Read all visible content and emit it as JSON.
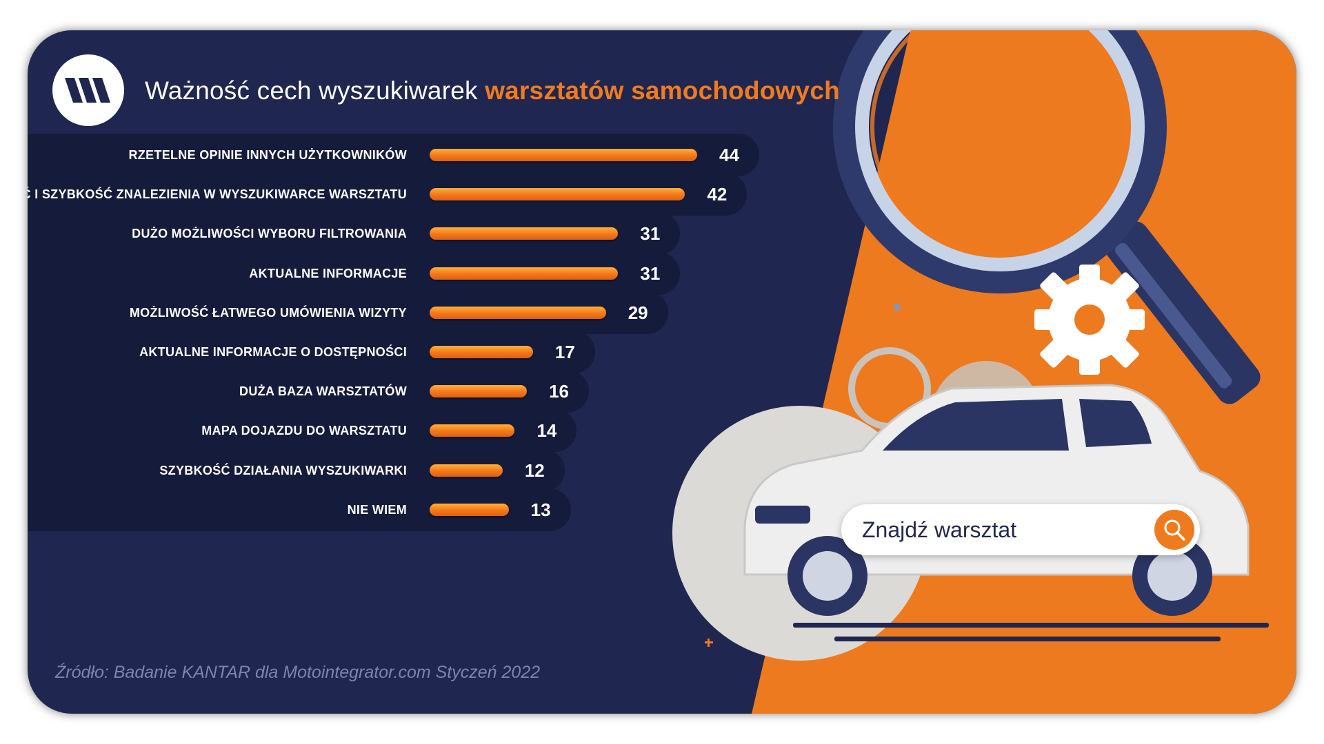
{
  "title": {
    "part1": "Ważność cech wyszukiwarek",
    "part2": "warsztatów samochodowych"
  },
  "logo": {
    "icon": "brand-logo-icon"
  },
  "search": {
    "text": "Znajdź warsztat",
    "icon": "search-icon"
  },
  "source": "Źródło: Badanie KANTAR dla Motointegrator.com Styczeń 2022",
  "colors": {
    "background": "#1f2650",
    "accent": "#f07b1f",
    "row": "#151b3b"
  },
  "chart_data": {
    "type": "bar",
    "orientation": "horizontal",
    "title": "Ważność cech wyszukiwarek warsztatów samochodowych",
    "categories": [
      "RZETELNE OPINIE INNYCH UŻYTKOWNIKÓW",
      "ŁATWOŚĆ I SZYBKOŚĆ ZNALEZIENIA W WYSZUKIWARCE WARSZTATU",
      "DUŻO MOŻLIWOŚCI WYBORU FILTROWANIA",
      "AKTUALNE INFORMACJE",
      "MOŻLIWOŚĆ ŁATWEGO UMÓWIENIA WIZYTY",
      "AKTUALNE INFORMACJE O DOSTĘPNOŚCI",
      "DUŻA BAZA WARSZTATÓW",
      "MAPA DOJAZDU DO WARSZTATU",
      "SZYBKOŚĆ DZIAŁANIA WYSZUKIWARKI",
      "NIE WIEM"
    ],
    "values": [
      44,
      42,
      31,
      31,
      29,
      17,
      16,
      14,
      12,
      13
    ],
    "xlim": [
      0,
      44
    ],
    "grid": false,
    "legend": "none"
  }
}
